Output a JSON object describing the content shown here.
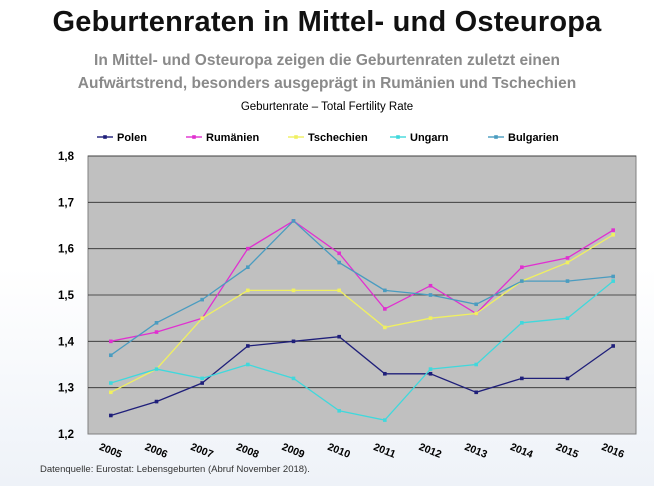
{
  "page": {
    "title": "Geburtenraten in Mittel- und Osteuropa",
    "subtitle_line1": "In Mittel- und Osteuropa zeigen die Geburtenraten zuletzt einen",
    "subtitle_line2": "Aufwärtstrend, besonders ausgeprägt in Rumänien und Tschechien",
    "source": "Datenquelle: Eurostat: Lebensgeburten (Abruf November 2018)."
  },
  "chart_data": {
    "type": "line",
    "title": "Geburtenrate – Total Fertility Rate",
    "xlabel": "",
    "ylabel": "",
    "x": [
      "2005",
      "2006",
      "2007",
      "2008",
      "2009",
      "2010",
      "2011",
      "2012",
      "2013",
      "2014",
      "2015",
      "2016"
    ],
    "ylim": [
      1.2,
      1.8
    ],
    "yticks": [
      "1,2",
      "1,3",
      "1,4",
      "1,5",
      "1,6",
      "1,7",
      "1,8"
    ],
    "grid": true,
    "legend_position": "top",
    "plot_background": "#c0c0c0",
    "series": [
      {
        "name": "Polen",
        "color": "#1f1f7a",
        "values": [
          1.24,
          1.27,
          1.31,
          1.39,
          1.4,
          1.41,
          1.33,
          1.33,
          1.29,
          1.32,
          1.32,
          1.39
        ]
      },
      {
        "name": "Rumänien",
        "color": "#e030d0",
        "values": [
          1.4,
          1.42,
          1.45,
          1.6,
          1.66,
          1.59,
          1.47,
          1.52,
          1.46,
          1.56,
          1.58,
          1.64
        ]
      },
      {
        "name": "Tschechien",
        "color": "#f0f060",
        "values": [
          1.29,
          1.34,
          1.45,
          1.51,
          1.51,
          1.51,
          1.43,
          1.45,
          1.46,
          1.53,
          1.57,
          1.63
        ]
      },
      {
        "name": "Ungarn",
        "color": "#40d8dc",
        "values": [
          1.31,
          1.34,
          1.32,
          1.35,
          1.32,
          1.25,
          1.23,
          1.34,
          1.35,
          1.44,
          1.45,
          1.53
        ]
      },
      {
        "name": "Bulgarien",
        "color": "#4a9cc0",
        "values": [
          1.37,
          1.44,
          1.49,
          1.56,
          1.66,
          1.57,
          1.51,
          1.5,
          1.48,
          1.53,
          1.53,
          1.54
        ]
      }
    ]
  }
}
